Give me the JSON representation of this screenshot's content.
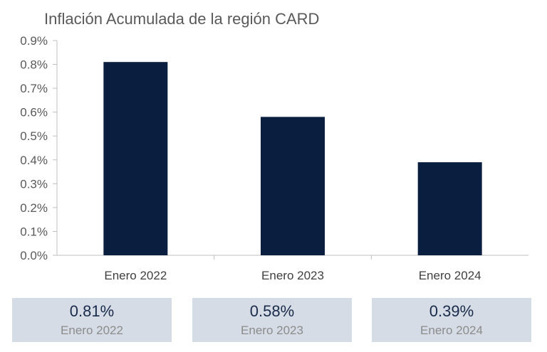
{
  "chart_data": {
    "type": "bar",
    "title": "Inflación Acumulada de la región CARD",
    "xlabel": "",
    "ylabel": "",
    "categories": [
      "Enero 2022",
      "Enero 2023",
      "Enero 2024"
    ],
    "values": [
      0.81,
      0.58,
      0.39
    ],
    "ylim": [
      0,
      0.9
    ],
    "yticks": [
      "0.0%",
      "0.1%",
      "0.2%",
      "0.3%",
      "0.4%",
      "0.5%",
      "0.6%",
      "0.7%",
      "0.8%",
      "0.9%"
    ],
    "grid": false,
    "bar_color": "#0a1e40",
    "axis_color": "#bfbfbf"
  },
  "cards": [
    {
      "value": "0.81%",
      "label": "Enero 2022"
    },
    {
      "value": "0.58%",
      "label": "Enero 2023"
    },
    {
      "value": "0.39%",
      "label": "Enero 2024"
    }
  ]
}
